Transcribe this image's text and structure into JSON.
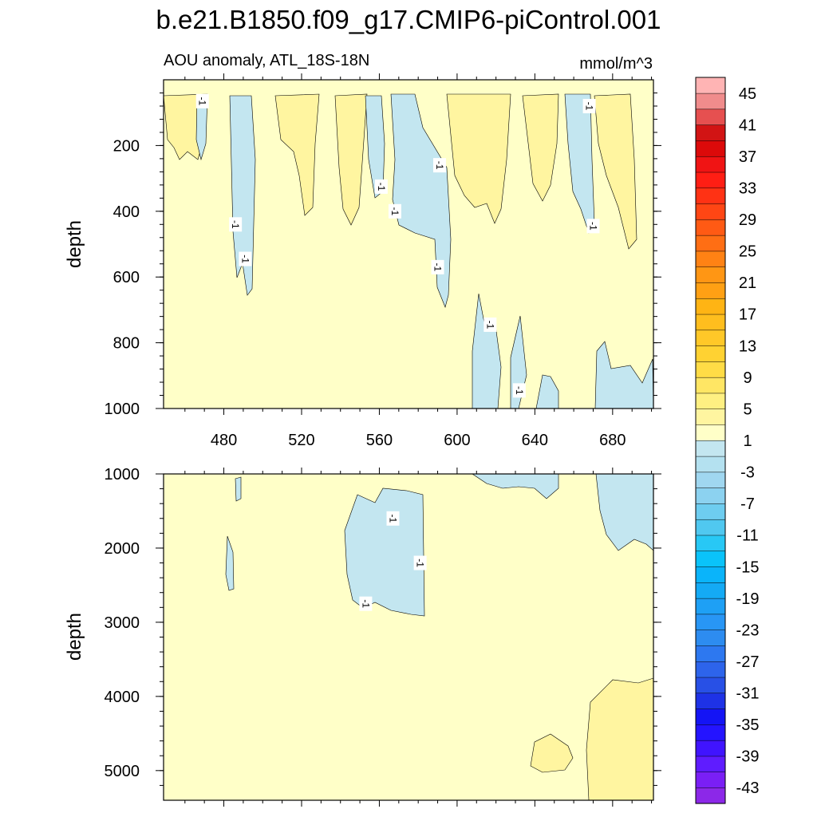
{
  "chart_data": {
    "type": "contour",
    "title": "b.e21.B1850.f09_g17.CMIP6-piControl.001",
    "subtitle_left": "AOU anomaly, ATL_18S-18N",
    "subtitle_right": "mmol/m^3",
    "xlim": [
      449,
      701
    ],
    "x_ticks": [
      480,
      520,
      560,
      600,
      640,
      680
    ],
    "x_tick_labels": [
      "480",
      "520",
      "560",
      "600",
      "640",
      "680"
    ],
    "panels": [
      {
        "name": "upper",
        "ylabel": "depth",
        "ylim": [
          0,
          1000
        ],
        "y_ticks": [
          200,
          400,
          600,
          800,
          1000
        ],
        "y_tick_labels": [
          "200",
          "400",
          "600",
          "800",
          "1000"
        ],
        "contour_labels": [
          {
            "text": "-1",
            "x": 469,
            "y": 65
          },
          {
            "text": "-1",
            "x": 668,
            "y": 80
          },
          {
            "text": "-1",
            "x": 591,
            "y": 260
          },
          {
            "text": "-1",
            "x": 561,
            "y": 325
          },
          {
            "text": "-1",
            "x": 568,
            "y": 400
          },
          {
            "text": "-1",
            "x": 486,
            "y": 440
          },
          {
            "text": "-1",
            "x": 491,
            "y": 545
          },
          {
            "text": "-1",
            "x": 670,
            "y": 445
          },
          {
            "text": "-1",
            "x": 590,
            "y": 570
          },
          {
            "text": "-1",
            "x": 617,
            "y": 745
          },
          {
            "text": "-1",
            "x": 632,
            "y": 945
          }
        ]
      },
      {
        "name": "lower",
        "ylabel": "depth",
        "ylim": [
          1000,
          5400
        ],
        "y_ticks": [
          1000,
          2000,
          3000,
          4000,
          5000
        ],
        "y_tick_labels": [
          "1000",
          "2000",
          "3000",
          "4000",
          "5000"
        ],
        "contour_labels": [
          {
            "text": "-1",
            "x": 567,
            "y": 1600
          },
          {
            "text": "-1",
            "x": 581,
            "y": 2200
          },
          {
            "text": "-1",
            "x": 553,
            "y": 2750
          }
        ]
      }
    ],
    "colorbar": {
      "levels": [
        -45,
        -43,
        -41,
        -39,
        -37,
        -35,
        -33,
        -31,
        -29,
        -27,
        -25,
        -23,
        -21,
        -19,
        -17,
        -15,
        -13,
        -11,
        -9,
        -7,
        -5,
        -3,
        -1,
        1,
        3,
        5,
        7,
        9,
        11,
        13,
        15,
        17,
        19,
        21,
        23,
        25,
        27,
        29,
        31,
        33,
        35,
        37,
        39,
        41,
        43,
        45
      ],
      "tick_labels": [
        "-43",
        "-39",
        "-35",
        "-31",
        "-27",
        "-23",
        "-19",
        "-15",
        "-11",
        "-7",
        "-3",
        "1",
        "5",
        "9",
        "13",
        "17",
        "21",
        "25",
        "29",
        "33",
        "37",
        "41",
        "45"
      ],
      "colors": [
        "#8c28e8",
        "#7a1ff5",
        "#5f1cff",
        "#4014ff",
        "#2414ff",
        "#1414f5",
        "#1e32e6",
        "#2850e6",
        "#2d64eb",
        "#2d78f0",
        "#2d8cf0",
        "#2896f5",
        "#1ea0f5",
        "#14aaf5",
        "#0ab4fa",
        "#0ac3fa",
        "#28c8f5",
        "#50c8f0",
        "#6ecdf0",
        "#8cd2f0",
        "#a0d7f0",
        "#b4e1f0",
        "#c3e6f0",
        "#ffffc8",
        "#fff5a0",
        "#fff082",
        "#ffe664",
        "#ffdc46",
        "#ffd232",
        "#ffc828",
        "#ffbe1e",
        "#ffb414",
        "#ffa014",
        "#ff9614",
        "#ff8214",
        "#ff6e14",
        "#ff5a14",
        "#ff4614",
        "#ff3214",
        "#ff1e14",
        "#f01414",
        "#dc0a0a",
        "#d21414",
        "#e65050",
        "#f08c8c",
        "#ffb4b4"
      ]
    }
  }
}
